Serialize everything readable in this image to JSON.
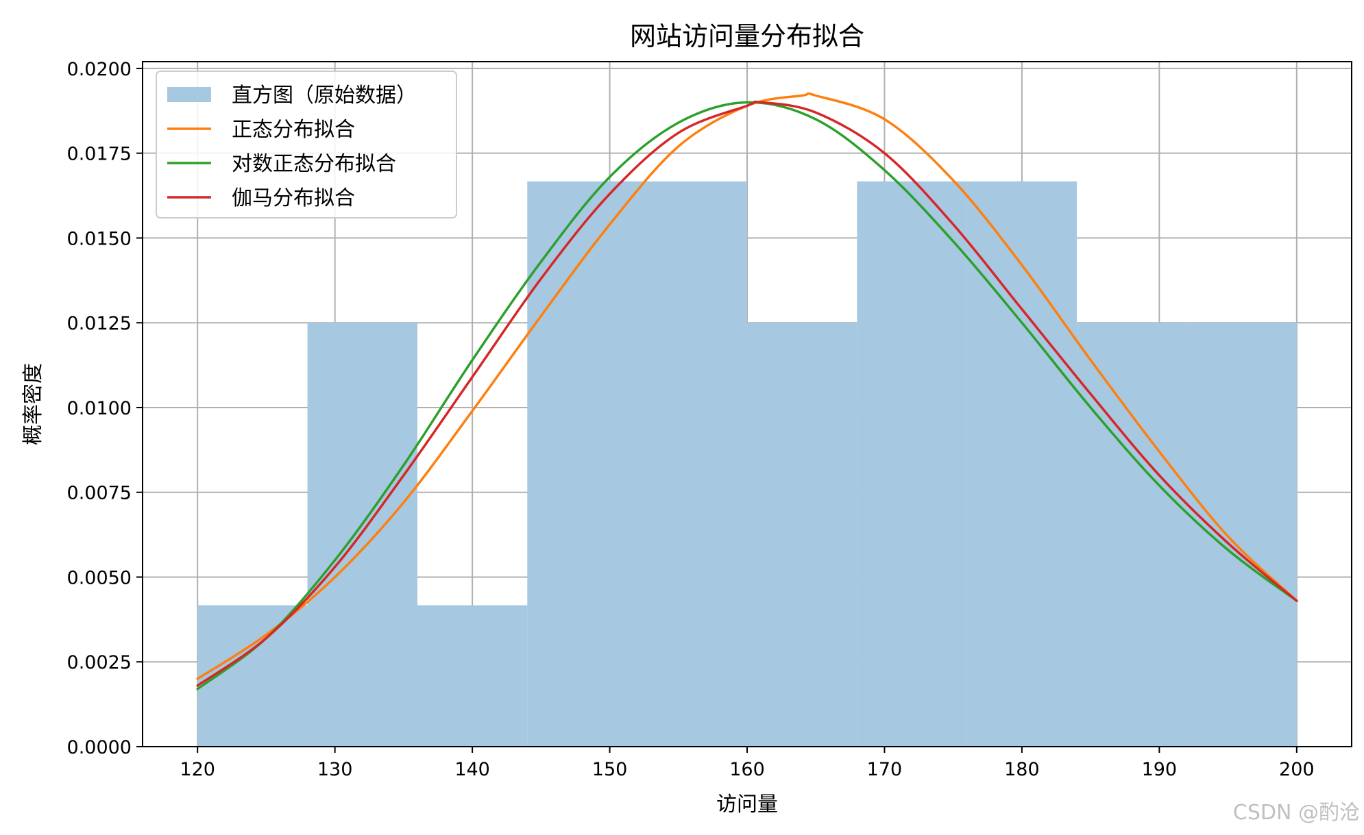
{
  "chart_data": {
    "type": "bar",
    "title": "网站访问量分布拟合",
    "xlabel": "访问量",
    "ylabel": "概率密度",
    "xlim": [
      116,
      204
    ],
    "ylim": [
      0,
      0.0202
    ],
    "x_ticks": [
      "120",
      "130",
      "140",
      "150",
      "160",
      "170",
      "180",
      "190",
      "200"
    ],
    "y_ticks": [
      "0.0000",
      "0.0025",
      "0.0050",
      "0.0075",
      "0.0100",
      "0.0125",
      "0.0150",
      "0.0175",
      "0.0200"
    ],
    "grid": true,
    "legend_position": "upper-left",
    "histogram": {
      "name": "直方图（原始数据）",
      "color": "#a6c8e0",
      "bin_edges": [
        120,
        128,
        136,
        144,
        152,
        160,
        168,
        176,
        184,
        192,
        200
      ],
      "values": [
        0.00417,
        0.0125,
        0.00417,
        0.01667,
        0.01667,
        0.0125,
        0.01667,
        0.01667,
        0.0125,
        0.0125
      ]
    },
    "series": [
      {
        "name": "正态分布拟合",
        "color": "#ff7f0e",
        "x": [
          120,
          125,
          130,
          135,
          140,
          145,
          150,
          155,
          160,
          164,
          165,
          170,
          175,
          180,
          185,
          190,
          195,
          200
        ],
        "values": [
          0.002,
          0.0033,
          0.005,
          0.0072,
          0.0099,
          0.0127,
          0.0154,
          0.0177,
          0.0189,
          0.0192,
          0.0192,
          0.0185,
          0.0167,
          0.0142,
          0.0114,
          0.0087,
          0.0062,
          0.0043
        ]
      },
      {
        "name": "对数正态分布拟合",
        "color": "#2ca02c",
        "x": [
          120,
          125,
          130,
          135,
          140,
          145,
          150,
          155,
          160,
          165,
          170,
          175,
          180,
          185,
          190,
          195,
          200
        ],
        "values": [
          0.0017,
          0.0032,
          0.0055,
          0.0083,
          0.0114,
          0.0143,
          0.0168,
          0.0184,
          0.019,
          0.0185,
          0.017,
          0.0149,
          0.0125,
          0.01,
          0.0077,
          0.0058,
          0.0043
        ]
      },
      {
        "name": "伽马分布拟合",
        "color": "#d62728",
        "x": [
          120,
          125,
          130,
          135,
          140,
          145,
          150,
          155,
          160,
          161,
          165,
          170,
          175,
          180,
          185,
          190,
          195,
          200
        ],
        "values": [
          0.0018,
          0.0032,
          0.0053,
          0.008,
          0.0109,
          0.0138,
          0.0163,
          0.0181,
          0.0189,
          0.019,
          0.0187,
          0.0175,
          0.0154,
          0.0129,
          0.0104,
          0.008,
          0.006,
          0.0043
        ]
      }
    ]
  },
  "watermark": "CSDN @酌沧"
}
